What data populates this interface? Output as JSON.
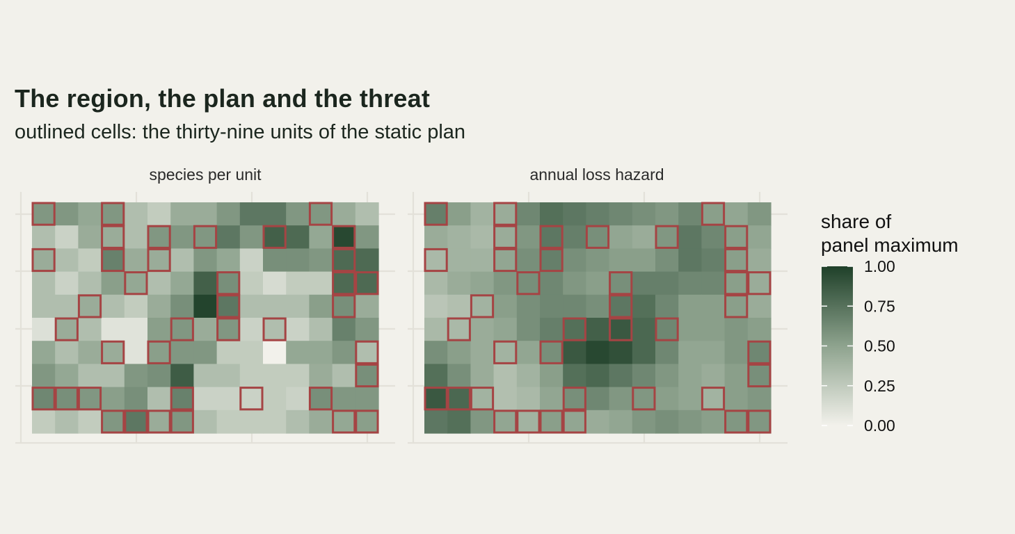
{
  "header": {
    "title": "The region, the plan and the threat",
    "subtitle": "outlined cells: the thirty-nine units of the static plan"
  },
  "chart_data": {
    "type": "heatmap",
    "title": "The region, the plan and the threat",
    "subtitle": "outlined cells: the thirty-nine units of the static plan",
    "grid_columns": 15,
    "grid_rows": 10,
    "value_scale": "share of panel maximum (0 to 1)",
    "row_order": "top row first",
    "panels": [
      {
        "name": "species per unit",
        "values": [
          [
            0.56,
            0.56,
            0.47,
            0.56,
            0.33,
            0.24,
            0.44,
            0.44,
            0.56,
            0.72,
            0.72,
            0.56,
            0.56,
            0.44,
            0.33
          ],
          [
            0.33,
            0.2,
            0.44,
            0.44,
            0.33,
            0.56,
            0.56,
            0.56,
            0.72,
            0.56,
            0.84,
            0.79,
            0.47,
            0.96,
            0.56
          ],
          [
            0.44,
            0.33,
            0.24,
            0.67,
            0.44,
            0.44,
            0.33,
            0.56,
            0.47,
            0.2,
            0.6,
            0.6,
            0.56,
            0.79,
            0.79
          ],
          [
            0.33,
            0.2,
            0.33,
            0.52,
            0.47,
            0.33,
            0.47,
            0.84,
            0.6,
            0.24,
            0.14,
            0.24,
            0.24,
            0.79,
            0.79
          ],
          [
            0.33,
            0.33,
            0.44,
            0.33,
            0.24,
            0.44,
            0.6,
            0.98,
            0.72,
            0.33,
            0.33,
            0.33,
            0.52,
            0.6,
            0.44
          ],
          [
            0.11,
            0.44,
            0.33,
            0.09,
            0.09,
            0.52,
            0.56,
            0.44,
            0.56,
            0.2,
            0.33,
            0.2,
            0.33,
            0.67,
            0.56
          ],
          [
            0.47,
            0.33,
            0.44,
            0.44,
            0.09,
            0.52,
            0.56,
            0.56,
            0.24,
            0.24,
            0.0,
            0.47,
            0.47,
            0.56,
            0.33
          ],
          [
            0.56,
            0.47,
            0.33,
            0.33,
            0.56,
            0.6,
            0.86,
            0.33,
            0.33,
            0.24,
            0.24,
            0.24,
            0.44,
            0.33,
            0.6
          ],
          [
            0.64,
            0.6,
            0.56,
            0.52,
            0.6,
            0.33,
            0.67,
            0.2,
            0.2,
            0.2,
            0.24,
            0.2,
            0.6,
            0.56,
            0.56
          ],
          [
            0.24,
            0.33,
            0.24,
            0.56,
            0.72,
            0.44,
            0.56,
            0.33,
            0.24,
            0.24,
            0.24,
            0.33,
            0.44,
            0.47,
            0.52
          ]
        ]
      },
      {
        "name": "annual loss hazard",
        "values": [
          [
            0.68,
            0.52,
            0.4,
            0.44,
            0.64,
            0.76,
            0.72,
            0.68,
            0.64,
            0.6,
            0.56,
            0.64,
            0.52,
            0.48,
            0.56
          ],
          [
            0.44,
            0.4,
            0.36,
            0.44,
            0.56,
            0.72,
            0.68,
            0.6,
            0.48,
            0.44,
            0.56,
            0.72,
            0.64,
            0.52,
            0.48
          ],
          [
            0.36,
            0.4,
            0.4,
            0.48,
            0.6,
            0.68,
            0.6,
            0.56,
            0.52,
            0.52,
            0.6,
            0.72,
            0.68,
            0.52,
            0.44
          ],
          [
            0.36,
            0.44,
            0.48,
            0.56,
            0.6,
            0.64,
            0.56,
            0.52,
            0.6,
            0.68,
            0.68,
            0.64,
            0.64,
            0.52,
            0.44
          ],
          [
            0.28,
            0.32,
            0.4,
            0.52,
            0.6,
            0.64,
            0.64,
            0.6,
            0.72,
            0.76,
            0.64,
            0.52,
            0.52,
            0.52,
            0.44
          ],
          [
            0.36,
            0.36,
            0.44,
            0.48,
            0.6,
            0.68,
            0.76,
            0.84,
            0.88,
            0.8,
            0.64,
            0.52,
            0.52,
            0.56,
            0.52
          ],
          [
            0.6,
            0.52,
            0.44,
            0.4,
            0.48,
            0.6,
            0.88,
            0.96,
            0.92,
            0.8,
            0.64,
            0.48,
            0.48,
            0.56,
            0.64
          ],
          [
            0.76,
            0.6,
            0.44,
            0.32,
            0.4,
            0.52,
            0.76,
            0.8,
            0.72,
            0.64,
            0.56,
            0.48,
            0.44,
            0.52,
            0.6
          ],
          [
            0.88,
            0.8,
            0.4,
            0.32,
            0.36,
            0.48,
            0.6,
            0.64,
            0.56,
            0.56,
            0.52,
            0.48,
            0.4,
            0.52,
            0.56
          ],
          [
            0.72,
            0.76,
            0.56,
            0.48,
            0.4,
            0.52,
            0.48,
            0.44,
            0.48,
            0.56,
            0.6,
            0.56,
            0.52,
            0.56,
            0.56
          ]
        ]
      }
    ],
    "plan_units": [
      [
        0,
        0
      ],
      [
        0,
        3
      ],
      [
        0,
        12
      ],
      [
        1,
        3
      ],
      [
        1,
        5
      ],
      [
        1,
        7
      ],
      [
        1,
        10
      ],
      [
        1,
        13
      ],
      [
        2,
        0
      ],
      [
        2,
        3
      ],
      [
        2,
        5
      ],
      [
        2,
        13
      ],
      [
        3,
        4
      ],
      [
        3,
        8
      ],
      [
        3,
        13
      ],
      [
        3,
        14
      ],
      [
        4,
        2
      ],
      [
        4,
        8
      ],
      [
        4,
        13
      ],
      [
        5,
        1
      ],
      [
        5,
        6
      ],
      [
        5,
        8
      ],
      [
        5,
        10
      ],
      [
        6,
        3
      ],
      [
        6,
        5
      ],
      [
        6,
        14
      ],
      [
        7,
        14
      ],
      [
        8,
        0
      ],
      [
        8,
        1
      ],
      [
        8,
        2
      ],
      [
        8,
        6
      ],
      [
        8,
        9
      ],
      [
        8,
        12
      ],
      [
        9,
        3
      ],
      [
        9,
        4
      ],
      [
        9,
        6
      ],
      [
        9,
        13
      ],
      [
        9,
        14
      ],
      [
        9,
        5
      ]
    ],
    "legend": {
      "title": "share of\npanel maximum",
      "title_lines": [
        "share of",
        "panel maximum"
      ],
      "ticks": [
        "1.00",
        "0.75",
        "0.50",
        "0.25",
        "0.00"
      ],
      "tick_values": [
        1.0,
        0.75,
        0.5,
        0.25,
        0.0
      ],
      "placement": "right"
    },
    "colors": {
      "low": "#f2f1eb",
      "mid": "#8ea38e",
      "high": "#1f4029",
      "outline": "#a54444",
      "gridline": "#e3e1d9",
      "background": "#f2f1eb"
    },
    "grid": true
  }
}
